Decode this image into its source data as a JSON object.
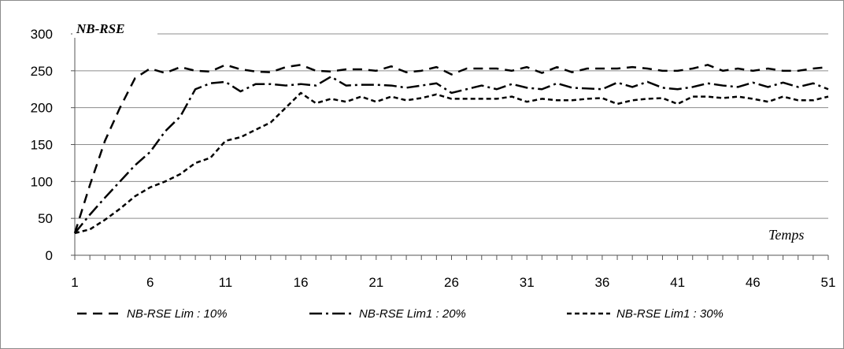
{
  "chart_data": {
    "type": "line",
    "ylabel": "NB-RSE",
    "xlabel": "Temps",
    "ylim": [
      0,
      300
    ],
    "xlim": [
      1,
      51
    ],
    "yticks": [
      0,
      50,
      100,
      150,
      200,
      250,
      300
    ],
    "xticks": [
      1,
      6,
      11,
      16,
      21,
      26,
      31,
      36,
      41,
      46,
      51
    ],
    "grid": "horizontal",
    "legend_position": "bottom",
    "x": [
      1,
      2,
      3,
      4,
      5,
      6,
      7,
      8,
      9,
      10,
      11,
      12,
      13,
      14,
      15,
      16,
      17,
      18,
      19,
      20,
      21,
      22,
      23,
      24,
      25,
      26,
      27,
      28,
      29,
      30,
      31,
      32,
      33,
      34,
      35,
      36,
      37,
      38,
      39,
      40,
      41,
      42,
      43,
      44,
      45,
      46,
      47,
      48,
      49,
      50,
      51
    ],
    "series": [
      {
        "name": "NB-RSE Lim : 10%",
        "dash": "12,8",
        "values": [
          30,
          95,
          155,
          200,
          240,
          253,
          247,
          255,
          250,
          249,
          258,
          252,
          249,
          248,
          255,
          258,
          250,
          249,
          252,
          252,
          250,
          256,
          248,
          250,
          255,
          245,
          253,
          253,
          253,
          250,
          255,
          247,
          255,
          248,
          253,
          253,
          253,
          255,
          253,
          250,
          250,
          253,
          258,
          250,
          253,
          250,
          253,
          250,
          250,
          253,
          255
        ]
      },
      {
        "name": "NB-RSE Lim1 : 20%",
        "dash": "16,5,3,5",
        "values": [
          30,
          55,
          78,
          100,
          122,
          140,
          168,
          188,
          225,
          233,
          235,
          222,
          232,
          232,
          230,
          232,
          230,
          242,
          230,
          231,
          231,
          230,
          227,
          230,
          233,
          220,
          225,
          230,
          225,
          232,
          227,
          225,
          233,
          227,
          226,
          225,
          234,
          228,
          235,
          227,
          225,
          228,
          233,
          230,
          228,
          234,
          228,
          234,
          228,
          233,
          225
        ]
      },
      {
        "name": "NB-RSE Lim1 : 30%",
        "dash": "6,4",
        "values": [
          30,
          35,
          48,
          63,
          80,
          92,
          100,
          110,
          125,
          132,
          155,
          160,
          170,
          180,
          200,
          220,
          206,
          212,
          208,
          215,
          208,
          215,
          210,
          213,
          218,
          212,
          212,
          212,
          212,
          215,
          208,
          212,
          210,
          210,
          212,
          213,
          205,
          210,
          212,
          213,
          205,
          215,
          215,
          213,
          215,
          212,
          208,
          215,
          210,
          210,
          215
        ]
      }
    ]
  }
}
